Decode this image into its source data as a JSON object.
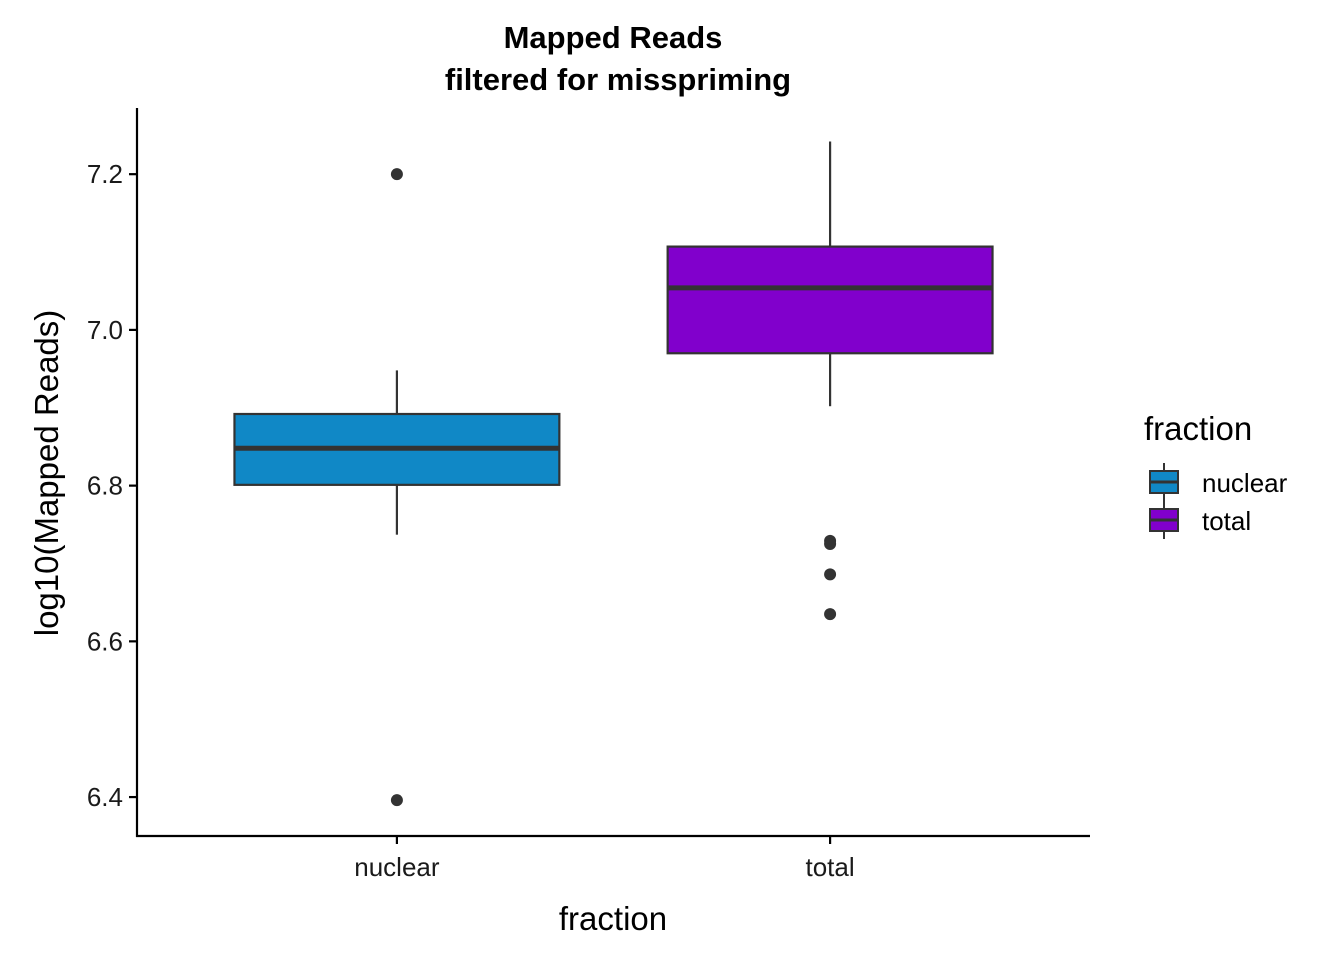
{
  "chart_data": {
    "type": "box",
    "title": "Mapped Reads",
    "subtitle": "filtered for misspriming",
    "xlabel": "fraction",
    "ylabel": "log10(Mapped Reads)",
    "categories": [
      "nuclear",
      "total"
    ],
    "ylim": [
      6.35,
      7.285
    ],
    "yticks": [
      6.4,
      6.6,
      6.8,
      7.0,
      7.2
    ],
    "ytick_labels": [
      "6.4",
      "6.6",
      "6.8",
      "7.0",
      "7.2"
    ],
    "grid": false,
    "legend": {
      "title": "fraction",
      "placement": "right",
      "entries": [
        "nuclear",
        "total"
      ]
    },
    "boxes": [
      {
        "name": "nuclear",
        "color": "#1088c6",
        "whisker_low": 6.737,
        "q1": 6.801,
        "median": 6.848,
        "q3": 6.892,
        "whisker_high": 6.948,
        "outliers": [
          7.2,
          6.396
        ]
      },
      {
        "name": "total",
        "color": "#8100cc",
        "whisker_low": 6.902,
        "q1": 6.97,
        "median": 7.054,
        "q3": 7.107,
        "whisker_high": 7.242,
        "outliers": [
          6.729,
          6.725,
          6.686,
          6.635
        ]
      }
    ]
  }
}
